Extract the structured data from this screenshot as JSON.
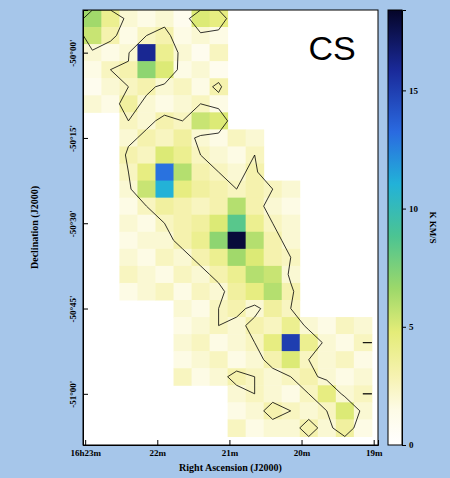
{
  "chart_data": {
    "type": "heatmap",
    "title": "CS",
    "x_label": "Right Ascension (J2000)",
    "y_label": "Declination (J2000)",
    "xlim": [
      23.03,
      18.94
    ],
    "ylim": [
      -49.875,
      -51.15
    ],
    "xticks": [
      {
        "value": 23,
        "label": "16h23m"
      },
      {
        "value": 22,
        "label": "22m"
      },
      {
        "value": 21,
        "label": "21m"
      },
      {
        "value": 20,
        "label": "20m"
      },
      {
        "value": 19,
        "label": "19m"
      }
    ],
    "yticks": [
      {
        "value": -50,
        "label": "-50°00'"
      },
      {
        "value": -50.25,
        "label": "-50°15'"
      },
      {
        "value": -50.5,
        "label": "-50°30'"
      },
      {
        "value": -50.75,
        "label": "-50°45'"
      },
      {
        "value": -51,
        "label": "-51°00'"
      }
    ],
    "x": [
      22.9,
      22.65,
      22.4,
      22.15,
      21.9,
      21.65,
      21.4,
      21.15,
      20.9,
      20.65,
      20.4,
      20.15,
      19.9,
      19.65,
      19.4,
      19.15
    ],
    "y": [
      -49.9,
      -49.95,
      -50,
      -50.05,
      -50.1,
      -50.15,
      -50.2,
      -50.25,
      -50.3,
      -50.35,
      -50.4,
      -50.45,
      -50.5,
      -50.55,
      -50.6,
      -50.65,
      -50.7,
      -50.75,
      -50.8,
      -50.85,
      -50.9,
      -50.95,
      -51,
      -51.05,
      -51.1
    ],
    "cells": [
      [
        6.5,
        4.0,
        2.0,
        1.5,
        2.0,
        1.0,
        5.0,
        4.5,
        null,
        null,
        null,
        null,
        null,
        null,
        null,
        null
      ],
      [
        5.5,
        3.0,
        1.5,
        2.5,
        3.0,
        1.5,
        2.0,
        1.5,
        null,
        null,
        null,
        null,
        null,
        null,
        null,
        null
      ],
      [
        2.0,
        1.5,
        2.0,
        16.0,
        4.0,
        2.0,
        1.0,
        2.5,
        null,
        null,
        null,
        null,
        null,
        null,
        null,
        null
      ],
      [
        1.5,
        2.5,
        3.0,
        7.0,
        5.0,
        1.5,
        2.0,
        1.0,
        null,
        null,
        null,
        null,
        null,
        null,
        null,
        null
      ],
      [
        1.0,
        2.0,
        2.5,
        3.0,
        2.0,
        2.5,
        1.5,
        3.0,
        null,
        null,
        null,
        null,
        null,
        null,
        null,
        null
      ],
      [
        2.0,
        1.5,
        3.5,
        2.0,
        1.5,
        2.0,
        2.5,
        1.5,
        null,
        null,
        null,
        null,
        null,
        null,
        null,
        null
      ],
      [
        null,
        null,
        2.5,
        2.0,
        3.0,
        2.5,
        5.5,
        5.0,
        null,
        null,
        null,
        null,
        null,
        null,
        null,
        null
      ],
      [
        null,
        null,
        2.0,
        3.0,
        2.5,
        3.5,
        2.0,
        1.5,
        2.5,
        2.0,
        null,
        null,
        null,
        null,
        null,
        null
      ],
      [
        null,
        null,
        3.0,
        2.5,
        5.0,
        4.0,
        2.5,
        2.0,
        1.5,
        2.5,
        null,
        null,
        null,
        null,
        null,
        null
      ],
      [
        null,
        null,
        2.5,
        4.5,
        13.0,
        6.0,
        3.0,
        2.5,
        2.0,
        3.0,
        null,
        null,
        null,
        null,
        null,
        null
      ],
      [
        null,
        null,
        2.0,
        5.5,
        11.0,
        4.5,
        3.5,
        3.0,
        2.5,
        3.0,
        2.5,
        2.0,
        null,
        null,
        null,
        null
      ],
      [
        null,
        null,
        1.5,
        2.5,
        3.5,
        3.0,
        2.5,
        3.0,
        6.0,
        3.0,
        2.0,
        1.5,
        null,
        null,
        null,
        null
      ],
      [
        null,
        null,
        2.0,
        1.5,
        2.5,
        3.0,
        3.5,
        5.0,
        8.5,
        4.0,
        2.5,
        2.0,
        null,
        null,
        null,
        null
      ],
      [
        null,
        null,
        1.5,
        2.0,
        2.0,
        3.0,
        4.0,
        7.0,
        18.0,
        6.0,
        3.0,
        2.0,
        null,
        null,
        null,
        null
      ],
      [
        null,
        null,
        2.0,
        1.5,
        2.5,
        2.0,
        3.0,
        4.0,
        6.5,
        5.0,
        3.0,
        2.5,
        null,
        null,
        null,
        null
      ],
      [
        null,
        null,
        2.5,
        2.0,
        1.5,
        2.5,
        2.0,
        3.0,
        4.0,
        6.0,
        5.5,
        2.0,
        null,
        null,
        null,
        null
      ],
      [
        null,
        null,
        1.5,
        2.0,
        2.5,
        1.5,
        2.5,
        2.0,
        3.5,
        4.5,
        6.0,
        3.0,
        null,
        null,
        null,
        null
      ],
      [
        null,
        null,
        null,
        null,
        null,
        2.0,
        1.5,
        2.5,
        3.0,
        2.0,
        3.5,
        2.5,
        null,
        null,
        null,
        null
      ],
      [
        null,
        null,
        null,
        null,
        null,
        1.5,
        2.0,
        2.5,
        2.0,
        3.0,
        2.5,
        4.0,
        2.0,
        1.5,
        2.5,
        2.0
      ],
      [
        null,
        null,
        null,
        null,
        null,
        2.0,
        2.5,
        1.5,
        2.0,
        2.5,
        4.5,
        15.0,
        4.0,
        2.0,
        1.5,
        2.5
      ],
      [
        null,
        null,
        null,
        null,
        null,
        1.5,
        2.0,
        2.5,
        1.5,
        2.0,
        3.0,
        5.0,
        2.5,
        2.0,
        2.5,
        1.5
      ],
      [
        null,
        null,
        null,
        null,
        null,
        2.5,
        1.5,
        2.0,
        3.0,
        2.5,
        2.0,
        2.5,
        3.0,
        2.0,
        1.5,
        2.0
      ],
      [
        null,
        null,
        null,
        null,
        null,
        null,
        null,
        null,
        2.0,
        2.5,
        2.0,
        1.5,
        2.5,
        4.5,
        2.0,
        2.5
      ],
      [
        null,
        null,
        null,
        null,
        null,
        null,
        null,
        null,
        1.5,
        2.0,
        3.0,
        2.5,
        2.0,
        2.5,
        5.0,
        2.0
      ],
      [
        null,
        null,
        null,
        null,
        null,
        null,
        null,
        null,
        2.5,
        1.5,
        2.0,
        2.0,
        3.0,
        2.0,
        3.5,
        1.5
      ]
    ],
    "colorbar_lim": [
      0,
      18.4
    ],
    "colorbar_ticks": [
      0,
      5,
      10,
      15
    ],
    "colorbar_label": "K KM/S",
    "contour_levels": [
      2.5
    ]
  }
}
